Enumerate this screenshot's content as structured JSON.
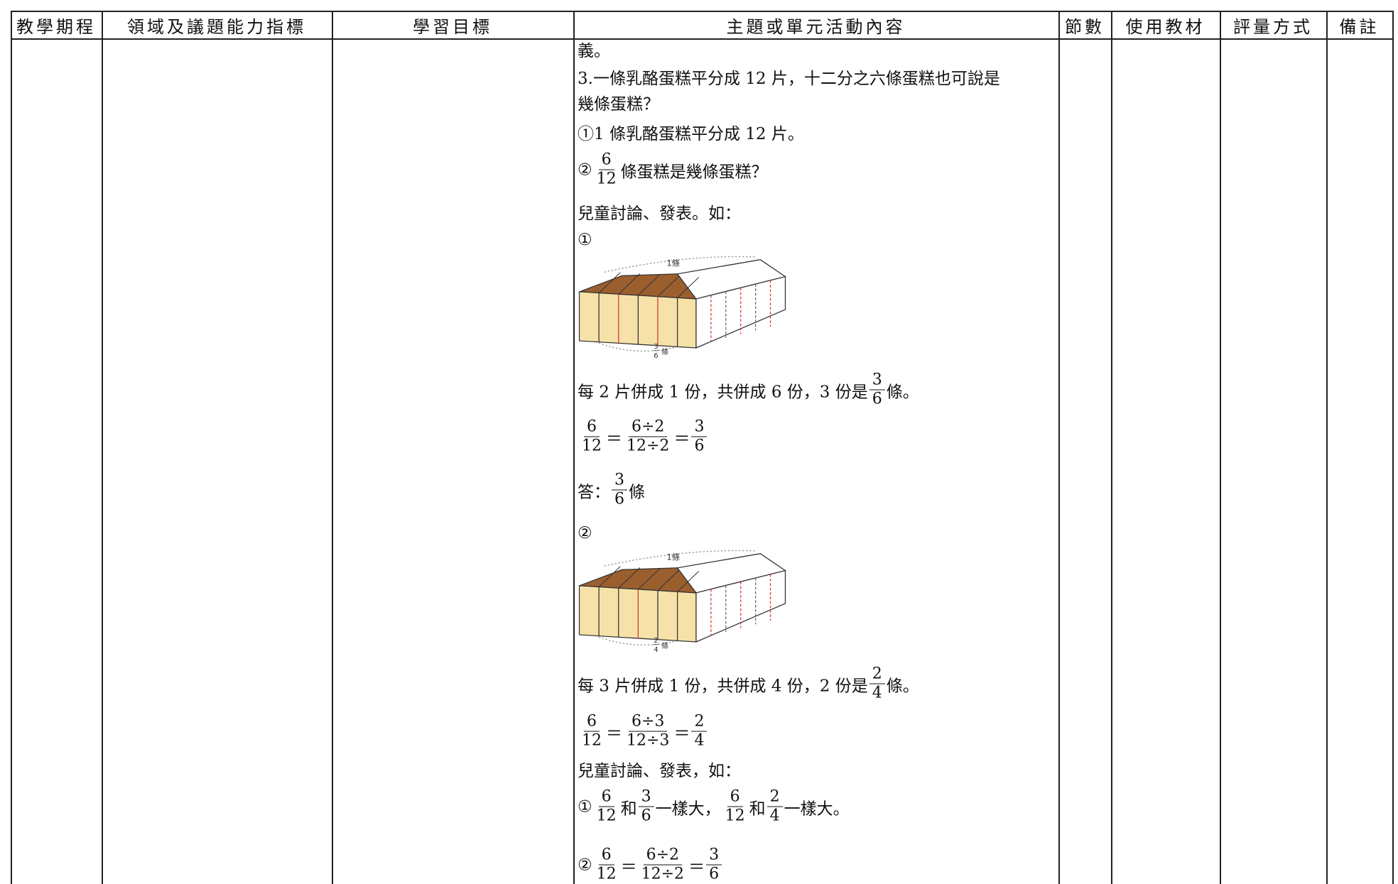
{
  "table": {
    "headers": [
      "教學期程",
      "領域及議題能力指標",
      "學習目標",
      "主題或單元活動內容",
      "節數",
      "使用教材",
      "評量方式",
      "備註"
    ],
    "content": [
      {
        "parts": [
          "義。"
        ]
      },
      {
        "parts": [
          "3.一條乳酪蛋糕平分成 12 片，十二分之六條蛋糕也可說是"
        ]
      },
      {
        "parts": [
          "幾條蛋糕？"
        ]
      },
      {
        "parts": [
          "①1 條乳酪蛋糕平分成 12 片。"
        ]
      },
      {
        "parts": [
          "②",
          {
            "num": "6",
            "den": "12"
          },
          "條蛋糕是幾條蛋糕？"
        ]
      },
      {
        "parts": [
          "兒童討論、發表。如："
        ]
      },
      {
        "parts": [
          "①"
        ]
      },
      {
        "figure": {
          "top": "1條",
          "num": "3",
          "den": "6",
          "unit": "條"
        }
      },
      {
        "parts": [
          "每 2 片併成 1 份，共併成 6 份，3 份是",
          {
            "num": "3",
            "den": "6"
          },
          "條。"
        ]
      },
      {
        "parts": [
          {
            "num": "6",
            "den": "12"
          },
          "＝",
          {
            "num": "6÷2",
            "den": "12÷2"
          },
          "＝",
          {
            "num": "3",
            "den": "6"
          }
        ]
      },
      {
        "parts": [
          "答：",
          {
            "num": "3",
            "den": "6"
          },
          "條"
        ]
      },
      {
        "parts": [
          "②"
        ]
      },
      {
        "figure": {
          "top": "1條",
          "num": "2",
          "den": "4",
          "unit": "條"
        }
      },
      {
        "parts": [
          "每 3 片併成 1 份，共併成 4 份，2 份是",
          {
            "num": "2",
            "den": "4"
          },
          "條。"
        ]
      },
      {
        "parts": [
          {
            "num": "6",
            "den": "12"
          },
          "＝",
          {
            "num": "6÷3",
            "den": "12÷3"
          },
          "＝",
          {
            "num": "2",
            "den": "4"
          }
        ]
      },
      {
        "parts": [
          "兒童討論、發表，如："
        ]
      },
      {
        "parts": [
          "①",
          {
            "num": "6",
            "den": "12"
          },
          "和",
          {
            "num": "3",
            "den": "6"
          },
          "一樣大，",
          {
            "num": "6",
            "den": "12"
          },
          "和",
          {
            "num": "2",
            "den": "4"
          },
          "一樣大。"
        ]
      },
      {
        "parts": [
          "②",
          {
            "num": "6",
            "den": "12"
          },
          "＝",
          {
            "num": "6÷2",
            "den": "12÷2"
          },
          "＝",
          {
            "num": "3",
            "den": "6"
          }
        ]
      }
    ]
  }
}
